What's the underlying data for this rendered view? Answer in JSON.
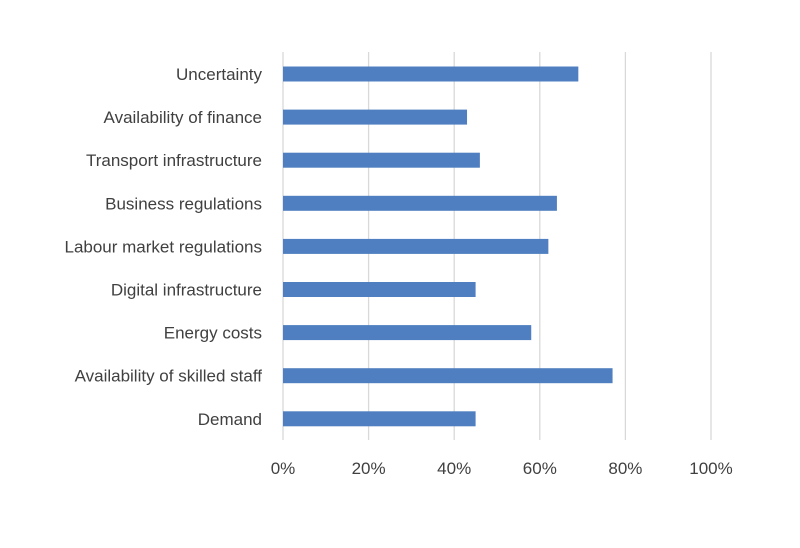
{
  "chart_data": {
    "type": "bar",
    "orientation": "horizontal",
    "title": "",
    "xlabel": "",
    "ylabel": "",
    "categories": [
      "Uncertainty",
      "Availability of finance",
      "Transport infrastructure",
      "Business regulations",
      "Labour market regulations",
      "Digital infrastructure",
      "Energy costs",
      "Availability of skilled staff",
      "Demand"
    ],
    "values": [
      69,
      43,
      46,
      64,
      62,
      45,
      58,
      77,
      45
    ],
    "value_unit": "%",
    "xlim": [
      0,
      100
    ],
    "x_ticks": [
      0,
      20,
      40,
      60,
      80,
      100
    ],
    "x_tick_labels": [
      "0%",
      "20%",
      "40%",
      "60%",
      "80%",
      "100%"
    ],
    "grid": "vertical",
    "legend": "none",
    "colors": {
      "bar": "#4f7fc0",
      "grid": "#d9d9d9",
      "text": "#404040"
    }
  }
}
